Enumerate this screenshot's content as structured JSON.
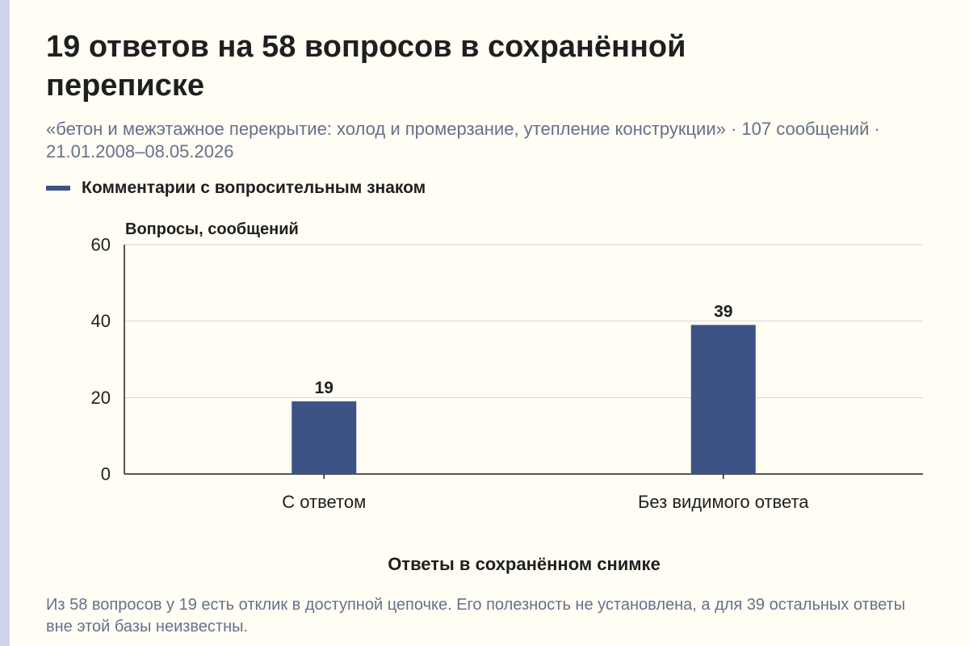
{
  "header": {
    "title": "19 ответов на 58 вопросов в сохранённой переписке",
    "subtitle": "«бетон и межэтажное перекрытие: холод и промерзание, утепление конструкции» · 107 сообщений · 21.01.2008–08.05.2026"
  },
  "colors": {
    "bar": "#3d5285",
    "accent_strip": "#cdd4ec",
    "background": "#fffdf4",
    "grid": "#d6d6d0",
    "axis": "#1f1f1f"
  },
  "chart_data": {
    "type": "bar",
    "categories": [
      "С ответом",
      "Без видимого ответа"
    ],
    "series": [
      {
        "name": "Комментарии с вопросительным знаком",
        "values": [
          19,
          39
        ]
      }
    ],
    "xlabel": "Ответы в сохранённом снимке",
    "ylabel": "Вопросы, сообщений",
    "ylim": [
      0,
      60
    ],
    "yticks": [
      0,
      20,
      40,
      60
    ],
    "grid": true,
    "legend": "top-left",
    "data_labels": true
  },
  "footer": {
    "note": "Из 58 вопросов у 19 есть отклик в доступной цепочке. Его полезность не установлена, а для 39 остальных ответы вне этой базы неизвестны."
  }
}
